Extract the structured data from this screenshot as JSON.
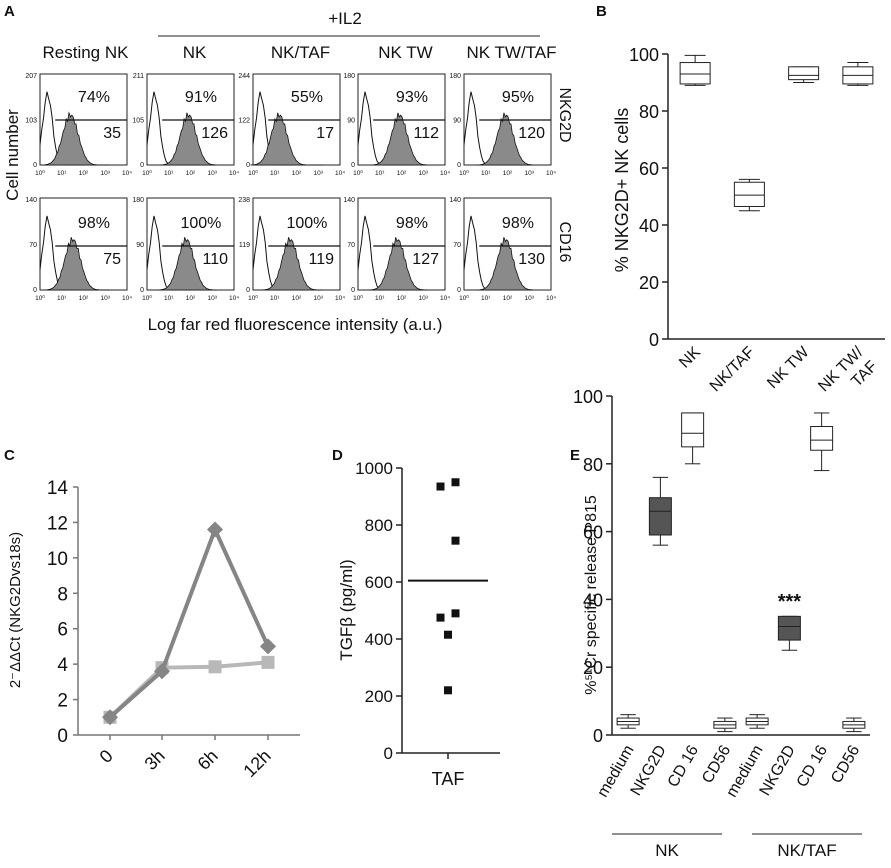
{
  "panel_letters": [
    "A",
    "B",
    "C",
    "D",
    "E"
  ],
  "panel_a": {
    "group_label": "+IL2",
    "row_axis_label": "Cell number",
    "x_axis_label": "Log far red fluorescence intensity (a.u.)",
    "row_labels": [
      "NKG2D",
      "CD16"
    ],
    "x_ticks": [
      "10⁰",
      "10¹",
      "10²",
      "10³",
      "10⁴"
    ],
    "columns": [
      {
        "title": "Resting NK",
        "ymax": [
          207,
          140
        ],
        "ymid": [
          103,
          70
        ],
        "pct": [
          "74%",
          "98%"
        ],
        "mfi": [
          "35",
          "75"
        ],
        "peak": [
          1.4,
          1.5
        ]
      },
      {
        "title": "NK",
        "ymax": [
          211,
          180
        ],
        "ymid": [
          105,
          90
        ],
        "pct": [
          "91%",
          "100%"
        ],
        "mfi": [
          "126",
          "110"
        ],
        "peak": [
          1.9,
          1.8
        ]
      },
      {
        "title": "NK/TAF",
        "ymax": [
          244,
          238
        ],
        "ymid": [
          122,
          119
        ],
        "pct": [
          "55%",
          "100%"
        ],
        "mfi": [
          "17",
          "119"
        ],
        "peak": [
          1.2,
          1.7
        ]
      },
      {
        "title": "NK TW",
        "ymax": [
          180,
          140
        ],
        "ymid": [
          90,
          70
        ],
        "pct": [
          "93%",
          "98%"
        ],
        "mfi": [
          "112",
          "127"
        ],
        "peak": [
          1.9,
          1.8
        ]
      },
      {
        "title": "NK TW/TAF",
        "ymax": [
          180,
          140
        ],
        "ymid": [
          90,
          70
        ],
        "pct": [
          "95%",
          "98%"
        ],
        "mfi": [
          "120",
          "130"
        ],
        "peak": [
          1.9,
          1.9
        ]
      }
    ]
  },
  "chart_data": [
    {
      "panel": "B",
      "type": "boxplot",
      "ylabel": "% NKG2D+ NK cells",
      "ylim": [
        0,
        100
      ],
      "yticks": [
        "0",
        "20",
        "40",
        "60",
        "80",
        "100"
      ],
      "categories": [
        "NK",
        "NK/TAF",
        "NK TW",
        "NK TW/TAF"
      ],
      "boxes": [
        {
          "min": 89,
          "q1": 89.5,
          "median": 93,
          "q3": 97,
          "max": 99.5
        },
        {
          "min": 45,
          "q1": 46.5,
          "median": 50.5,
          "q3": 55,
          "max": 56
        },
        {
          "min": 90,
          "q1": 91,
          "median": 92.5,
          "q3": 95.5,
          "max": 95.5
        },
        {
          "min": 89,
          "q1": 89.5,
          "median": 92.5,
          "q3": 95.5,
          "max": 97
        }
      ]
    },
    {
      "panel": "C",
      "type": "line",
      "ylabel": "2⁻ΔΔCt (NKG2Dvs18s)",
      "ylim": [
        0,
        14
      ],
      "yticks": [
        "0",
        "2",
        "4",
        "6",
        "8",
        "10",
        "12",
        "14"
      ],
      "categories": [
        "0",
        "3h",
        "6h",
        "12h"
      ],
      "series": [
        {
          "name": "series-diamond",
          "values": [
            1.0,
            3.6,
            11.6,
            5.0
          ],
          "color": "#858585",
          "marker": "diamond"
        },
        {
          "name": "series-square",
          "values": [
            1.0,
            3.8,
            3.85,
            4.1
          ],
          "color": "#b8b8b8",
          "marker": "square"
        }
      ]
    },
    {
      "panel": "D",
      "type": "scatter",
      "ylabel": "TGFβ (pg/ml)",
      "xlabel": "TAF",
      "ylim": [
        0,
        1000
      ],
      "yticks": [
        "0",
        "200",
        "400",
        "600",
        "800",
        "1000"
      ],
      "mean": 605,
      "points": [
        {
          "offset": -0.15,
          "y": 935
        },
        {
          "offset": 0.15,
          "y": 950
        },
        {
          "offset": 0.15,
          "y": 745
        },
        {
          "offset": 0.15,
          "y": 490
        },
        {
          "offset": -0.15,
          "y": 475
        },
        {
          "offset": 0.0,
          "y": 415
        },
        {
          "offset": 0.0,
          "y": 220
        }
      ]
    },
    {
      "panel": "E",
      "type": "boxplot",
      "ylabel": "%⁵¹Cr specific release P815",
      "ylim": [
        0,
        100
      ],
      "yticks": [
        "0",
        "20",
        "40",
        "60",
        "80",
        "100"
      ],
      "categories": [
        "medium",
        "NKG2D",
        "CD 16",
        "CD56",
        "medium",
        "NKG2D",
        "CD 16",
        "CD56"
      ],
      "boxes": [
        {
          "min": 2,
          "q1": 3,
          "median": 4,
          "q3": 5,
          "max": 6,
          "fill": "#ffffff"
        },
        {
          "min": 56,
          "q1": 59,
          "median": 66,
          "q3": 70,
          "max": 76,
          "fill": "#555555"
        },
        {
          "min": 80,
          "q1": 85,
          "median": 89,
          "q3": 95,
          "max": 95,
          "fill": "#ffffff"
        },
        {
          "min": 1,
          "q1": 2,
          "median": 3,
          "q3": 4,
          "max": 5,
          "fill": "#ffffff"
        },
        {
          "min": 2,
          "q1": 3,
          "median": 4,
          "q3": 5,
          "max": 6,
          "fill": "#ffffff"
        },
        {
          "min": 25,
          "q1": 28,
          "median": 32,
          "q3": 35,
          "max": 35,
          "fill": "#555555"
        },
        {
          "min": 78,
          "q1": 84,
          "median": 87,
          "q3": 91,
          "max": 95,
          "fill": "#ffffff"
        },
        {
          "min": 1,
          "q1": 2,
          "median": 3,
          "q3": 4,
          "max": 5,
          "fill": "#ffffff"
        }
      ],
      "annotation": {
        "text": "***",
        "category_index": 5,
        "y": 38
      },
      "groups": [
        "NK",
        "NK/TAF"
      ]
    }
  ]
}
